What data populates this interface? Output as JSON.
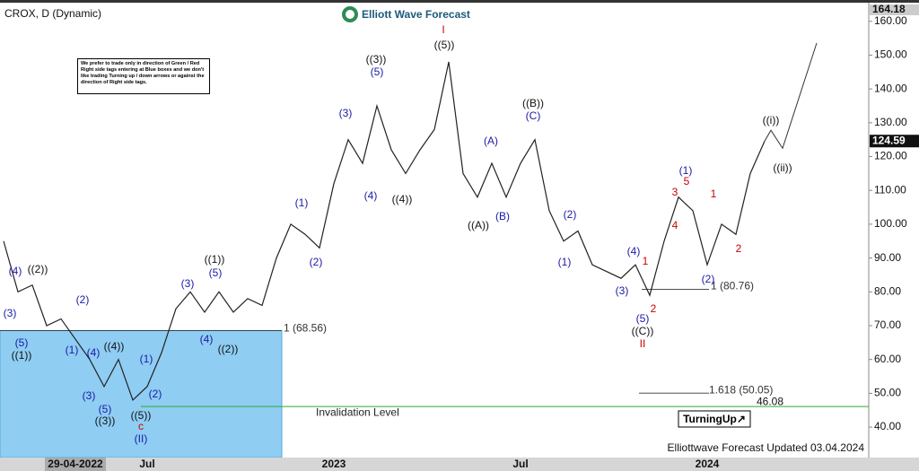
{
  "chart_data": {
    "type": "line",
    "title": "CROX, D (Dynamic)",
    "brand": "Elliott Wave Forecast",
    "note": "We prefer to trade only in direction of Green / Red Right side tags entering at Blue boxes and we don't like trading Turning up / down arrows or against the direction of Right side tags.",
    "footer": "Elliottwave Forecast Updated 03.04.2024",
    "badge": "TurningUp↗",
    "categories": [
      null,
      null,
      null,
      null,
      null,
      "29-04-2022",
      null,
      null,
      null,
      null,
      "Jul",
      null,
      null,
      null,
      null,
      null,
      null,
      null,
      null,
      null,
      null,
      null,
      null,
      "2023",
      null,
      null,
      null,
      null,
      null,
      null,
      null,
      null,
      null,
      null,
      null,
      null,
      "Jul",
      null,
      null,
      null,
      null,
      null,
      null,
      null,
      null,
      null,
      null,
      null,
      null,
      "2024",
      null,
      null,
      null,
      null
    ],
    "values": [
      95,
      80,
      82,
      70,
      72,
      66,
      60,
      52,
      60,
      48,
      52,
      62,
      75,
      80,
      74,
      80,
      74,
      78,
      76,
      90,
      100,
      97,
      93,
      112,
      125,
      118,
      135,
      122,
      115,
      122,
      128,
      148,
      115,
      108,
      118,
      108,
      118,
      125,
      104,
      95,
      98,
      88,
      86,
      84,
      88,
      79,
      95,
      108,
      104,
      88,
      100,
      97,
      115,
      124.59
    ],
    "color": "#222222",
    "last_price": 124.59,
    "ylim": [
      31,
      164.18
    ],
    "yticks": [
      {
        "value": 40,
        "label": "40.00"
      },
      {
        "value": 50,
        "label": "50.00"
      },
      {
        "value": 60,
        "label": "60.00"
      },
      {
        "value": 70,
        "label": "70.00"
      },
      {
        "value": 80,
        "label": "80.00"
      },
      {
        "value": 90,
        "label": "90.00"
      },
      {
        "value": 100,
        "label": "100.00"
      },
      {
        "value": 110,
        "label": "110.00"
      },
      {
        "value": 120,
        "label": "120.00"
      },
      {
        "value": 130,
        "label": "130.00"
      },
      {
        "value": 140,
        "label": "140.00"
      },
      {
        "value": 150,
        "label": "150.00"
      },
      {
        "value": 160,
        "label": "160.00"
      }
    ],
    "blue_box_top": {
      "value": 68.56,
      "label": "1 (68.56)"
    },
    "invalidation": {
      "value": 46.08,
      "label": "46.08",
      "text": "Invalidation Level"
    },
    "levels": [
      {
        "value": 80.76,
        "label": "1 (80.76)"
      },
      {
        "value": 50.05,
        "label": "1.618 (50.05)"
      }
    ],
    "annotations": [
      {
        "text": "(4)",
        "color": "#1a1aa6"
      },
      {
        "text": "((2))",
        "color": "#111"
      },
      {
        "text": "(3)",
        "color": "#1a1aa6"
      },
      {
        "text": "(5)",
        "color": "#1a1aa6"
      },
      {
        "text": "((1))",
        "color": "#111"
      },
      {
        "text": "(1)",
        "color": "#1a1aa6"
      },
      {
        "text": "(2)",
        "color": "#1a1aa6"
      },
      {
        "text": "(4)",
        "color": "#1a1aa6"
      },
      {
        "text": "((4))",
        "color": "#111"
      },
      {
        "text": "(3)",
        "color": "#1a1aa6"
      },
      {
        "text": "(5)",
        "color": "#1a1aa6"
      },
      {
        "text": "((3))",
        "color": "#111"
      },
      {
        "text": "(1)",
        "color": "#1a1aa6"
      },
      {
        "text": "(2)",
        "color": "#1a1aa6"
      },
      {
        "text": "((5))",
        "color": "#111"
      },
      {
        "text": "c",
        "color": "#cc0000"
      },
      {
        "text": "(II)",
        "color": "#1a1aa6"
      },
      {
        "text": "(3)",
        "color": "#1a1aa6"
      },
      {
        "text": "(5)",
        "color": "#1a1aa6"
      },
      {
        "text": "((1))",
        "color": "#111"
      },
      {
        "text": "(4)",
        "color": "#1a1aa6"
      },
      {
        "text": "((2))",
        "color": "#111"
      },
      {
        "text": "(1)",
        "color": "#1a1aa6"
      },
      {
        "text": "(2)",
        "color": "#1a1aa6"
      },
      {
        "text": "(3)",
        "color": "#1a1aa6"
      },
      {
        "text": "((3))",
        "color": "#111"
      },
      {
        "text": "(5)",
        "color": "#1a1aa6"
      },
      {
        "text": "(4)",
        "color": "#1a1aa6"
      },
      {
        "text": "((4))",
        "color": "#111"
      },
      {
        "text": "((5))",
        "color": "#111"
      },
      {
        "text": "I",
        "color": "#cc0000"
      },
      {
        "text": "(A)",
        "color": "#1a1aa6"
      },
      {
        "text": "((A))",
        "color": "#111"
      },
      {
        "text": "(B)",
        "color": "#1a1aa6"
      },
      {
        "text": "((B))",
        "color": "#111"
      },
      {
        "text": "(C)",
        "color": "#1a1aa6"
      },
      {
        "text": "(2)",
        "color": "#1a1aa6"
      },
      {
        "text": "(1)",
        "color": "#1a1aa6"
      },
      {
        "text": "(4)",
        "color": "#1a1aa6"
      },
      {
        "text": "(3)",
        "color": "#1a1aa6"
      },
      {
        "text": "1",
        "color": "#cc0000"
      },
      {
        "text": "2",
        "color": "#cc0000"
      },
      {
        "text": "(5)",
        "color": "#1a1aa6"
      },
      {
        "text": "((C))",
        "color": "#111"
      },
      {
        "text": "II",
        "color": "#cc0000"
      },
      {
        "text": "(1)",
        "color": "#1a1aa6"
      },
      {
        "text": "3",
        "color": "#cc0000"
      },
      {
        "text": "5",
        "color": "#cc0000"
      },
      {
        "text": "4",
        "color": "#cc0000"
      },
      {
        "text": "(2)",
        "color": "#1a1aa6"
      },
      {
        "text": "1",
        "color": "#cc0000"
      },
      {
        "text": "2",
        "color": "#cc0000"
      },
      {
        "text": "((i))",
        "color": "#111"
      },
      {
        "text": "((ii))",
        "color": "#111"
      }
    ]
  }
}
